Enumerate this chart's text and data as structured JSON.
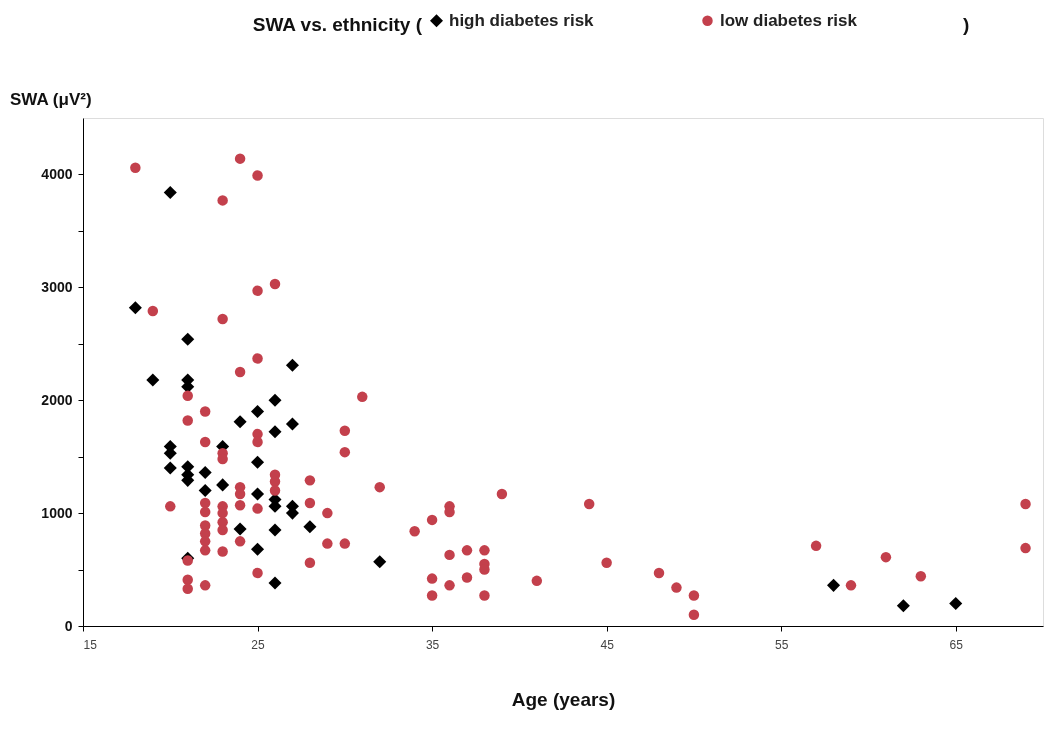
{
  "chart_data": {
    "type": "scatter",
    "title": "SWA vs. ethnicity (",
    "annotations": [
      ")"
    ],
    "xlabel": "Age (years)",
    "ylabel": "SWA (μV²)",
    "xlim": [
      15,
      70
    ],
    "xticks": [
      15,
      25,
      35,
      45,
      55,
      65
    ],
    "ylim": [
      0,
      4500
    ],
    "yticks": [
      0,
      {
        "value": 500,
        "label": null
      },
      1000,
      {
        "value": 1500,
        "label": null
      },
      2000,
      {
        "value": 2500,
        "label": null
      },
      3000,
      {
        "value": 3500,
        "label": null
      },
      4000
    ],
    "grid": false,
    "legend": "top",
    "series": [
      {
        "name": "high diabetes risk",
        "color": "#000000",
        "marker": "diamond",
        "x": [
          20,
          18,
          21,
          27,
          19,
          21,
          21,
          26,
          25,
          24,
          27,
          26,
          20,
          20,
          20,
          23,
          25,
          21,
          21,
          21,
          22,
          22,
          23,
          25,
          26,
          26,
          27,
          27,
          28,
          24,
          26,
          25,
          32,
          21,
          26,
          58,
          62,
          65
        ],
        "values": [
          3840,
          2820,
          2540,
          2310,
          2180,
          2180,
          2120,
          2000,
          1900,
          1810,
          1790,
          1720,
          1590,
          1530,
          1400,
          1590,
          1450,
          1410,
          1340,
          1290,
          1360,
          1200,
          1250,
          1170,
          1120,
          1060,
          1060,
          1000,
          880,
          860,
          850,
          680,
          570,
          600,
          380,
          360,
          180,
          200
        ]
      },
      {
        "name": "low diabetes risk",
        "color": "#c3404c",
        "marker": "circle",
        "x": [
          18,
          24,
          25,
          23,
          19,
          25,
          26,
          23,
          25,
          21,
          24,
          31,
          22,
          21,
          30,
          25,
          25,
          22,
          30,
          23,
          23,
          26,
          26,
          26,
          28,
          32,
          24,
          24,
          28,
          24,
          25,
          20,
          22,
          22,
          23,
          23,
          23,
          23,
          29,
          22,
          22,
          22,
          22,
          24,
          29,
          30,
          23,
          28,
          21,
          25,
          21,
          21,
          22,
          34,
          35,
          36,
          36,
          39,
          44,
          36,
          37,
          38,
          38,
          38,
          35,
          35,
          36,
          37,
          38,
          41,
          45,
          48,
          49,
          50,
          50,
          57,
          59,
          61,
          63,
          69,
          69
        ],
        "values": [
          4060,
          4140,
          3990,
          3770,
          2790,
          2970,
          3030,
          2720,
          2370,
          2040,
          2250,
          2030,
          1900,
          1820,
          1730,
          1700,
          1630,
          1630,
          1540,
          1530,
          1480,
          1340,
          1280,
          1200,
          1290,
          1230,
          1230,
          1170,
          1090,
          1070,
          1040,
          1060,
          1090,
          1010,
          1060,
          1000,
          920,
          850,
          1000,
          890,
          820,
          750,
          670,
          750,
          730,
          730,
          660,
          560,
          580,
          470,
          410,
          330,
          360,
          840,
          940,
          1060,
          1010,
          1170,
          1080,
          630,
          670,
          670,
          550,
          500,
          420,
          270,
          360,
          430,
          270,
          400,
          560,
          470,
          340,
          270,
          100,
          710,
          360,
          610,
          440,
          1080,
          690
        ]
      }
    ]
  }
}
